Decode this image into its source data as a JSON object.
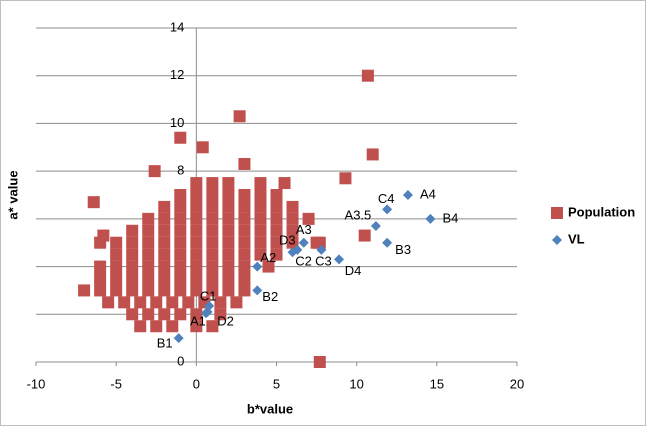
{
  "chart_data": {
    "type": "scatter",
    "x_label": "b*value",
    "y_label": "a* value",
    "xlim": [
      -10,
      20
    ],
    "xticks": [
      -10,
      -5,
      0,
      5,
      10,
      15,
      20
    ],
    "ylim": [
      0,
      14
    ],
    "yticks": [
      0,
      2,
      4,
      6,
      8,
      10,
      12,
      14
    ],
    "grid": true,
    "legend": "right",
    "series": [
      {
        "name": "Population",
        "color": "#c0504d",
        "marker": "square",
        "x": [
          -3.5,
          -2.5,
          -1.5,
          0,
          1,
          -4,
          -3,
          -2,
          -1,
          0,
          1.5,
          -5.5,
          -4.5,
          -3.5,
          -2.5,
          -1.5,
          -0.5,
          0.5,
          1.5,
          2.5,
          -7,
          -6,
          -5,
          -4,
          -3,
          -2,
          -1,
          0,
          1,
          2,
          3,
          -6,
          -5,
          -4,
          -3,
          -2,
          -1,
          0,
          1,
          2,
          3,
          -6,
          -5,
          -4,
          -3,
          -2,
          -1,
          0,
          1,
          2,
          3,
          4.5,
          -5,
          -4,
          -3,
          -2,
          -1,
          0,
          1,
          2,
          3,
          4,
          5,
          -6,
          -5,
          -4,
          -3,
          -2,
          -1,
          0,
          1,
          2,
          3,
          4,
          5,
          6,
          7.5,
          -4,
          -3,
          -2,
          -1,
          0,
          1,
          2,
          3,
          4,
          5,
          6,
          -3,
          -2,
          -1,
          0,
          1,
          2,
          3,
          4,
          5,
          6,
          7,
          -2,
          -1,
          0,
          1,
          2,
          3,
          4,
          5,
          6,
          -1,
          0,
          1,
          2,
          3,
          4,
          5,
          0,
          1,
          2,
          4,
          5.5,
          10.7,
          2.7,
          -1,
          0.4,
          11,
          3,
          -2.6,
          7.7,
          9.3,
          -6.4,
          -5.8,
          10.5,
          7.7
        ],
        "values": [
          1.5,
          1.5,
          1.5,
          1.5,
          1.5,
          2,
          2,
          2,
          2,
          2,
          2,
          2.5,
          2.5,
          2.5,
          2.5,
          2.5,
          2.5,
          2.5,
          2.5,
          2.5,
          3,
          3,
          3,
          3,
          3,
          3,
          3,
          3,
          3,
          3,
          3,
          3.5,
          3.5,
          3.5,
          3.5,
          3.5,
          3.5,
          3.5,
          3.5,
          3.5,
          3.5,
          4,
          4,
          4,
          4,
          4,
          4,
          4,
          4,
          4,
          4,
          4,
          4.5,
          4.5,
          4.5,
          4.5,
          4.5,
          4.5,
          4.5,
          4.5,
          4.5,
          4.5,
          4.5,
          5,
          5,
          5,
          5,
          5,
          5,
          5,
          5,
          5,
          5,
          5,
          5,
          5,
          5,
          5.5,
          5.5,
          5.5,
          5.5,
          5.5,
          5.5,
          5.5,
          5.5,
          5.5,
          5.5,
          5.5,
          6,
          6,
          6,
          6,
          6,
          6,
          6,
          6,
          6,
          6,
          6,
          6.5,
          6.5,
          6.5,
          6.5,
          6.5,
          6.5,
          6.5,
          6.5,
          6.5,
          7,
          7,
          7,
          7,
          7,
          7,
          7,
          7.5,
          7.5,
          7.5,
          7.5,
          7.5,
          12,
          10.3,
          9.4,
          9,
          8.7,
          8.3,
          8,
          0,
          7.7,
          6.7,
          5.3,
          5.3,
          5
        ]
      },
      {
        "name": "VL",
        "color": "#4f81bd",
        "marker": "diamond",
        "x": [
          0.6,
          0.8,
          0.7,
          -1.1,
          3.8,
          3.8,
          6.3,
          6.7,
          6.0,
          7.8,
          8.9,
          11.2,
          11.9,
          11.9,
          13.2,
          14.6
        ],
        "values": [
          2.05,
          2.35,
          2.1,
          1.0,
          4.0,
          3.0,
          4.7,
          5.0,
          4.6,
          4.7,
          4.3,
          5.7,
          5.0,
          6.4,
          7.0,
          6.0
        ],
        "labels": [
          "A1",
          "C1",
          "D2",
          "B1",
          "A2",
          "B2",
          "D3",
          "A3",
          "C2",
          "C3",
          "D4",
          "A3.5",
          "B3",
          "C4",
          "A4",
          "B4"
        ]
      }
    ]
  }
}
